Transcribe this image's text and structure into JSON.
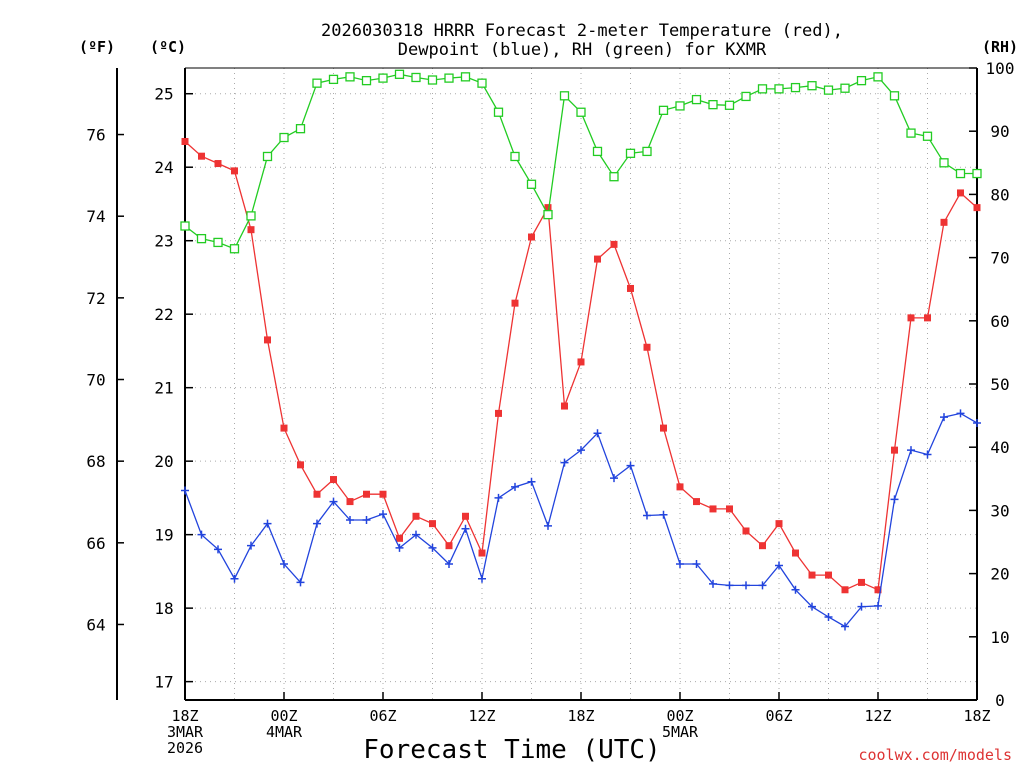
{
  "chart_data": {
    "type": "line",
    "title_line1": "2026030318 HRRR Forecast 2-meter Temperature (red),",
    "title_line2": "Dewpoint (blue), RH (green) for KXMR",
    "xlabel": "Forecast Time (UTC)",
    "unit_f": "(ºF)",
    "unit_c": "(ºC)",
    "unit_rh": "(RH)",
    "credit": "coolwx.com/models",
    "forecast_hours": [
      0,
      1,
      2,
      3,
      4,
      5,
      6,
      7,
      8,
      9,
      10,
      11,
      12,
      13,
      14,
      15,
      16,
      17,
      18,
      19,
      20,
      21,
      22,
      23,
      24,
      25,
      26,
      27,
      28,
      29,
      30,
      31,
      32,
      33,
      34,
      35,
      36,
      37,
      38,
      39,
      40,
      41,
      42,
      43,
      44,
      45,
      46,
      47,
      48
    ],
    "x_ticks": [
      {
        "hour": 0,
        "lines": [
          "18Z",
          "3MAR",
          "2026"
        ]
      },
      {
        "hour": 6,
        "lines": [
          "00Z",
          "4MAR"
        ]
      },
      {
        "hour": 12,
        "lines": [
          "06Z"
        ]
      },
      {
        "hour": 18,
        "lines": [
          "12Z"
        ]
      },
      {
        "hour": 24,
        "lines": [
          "18Z"
        ]
      },
      {
        "hour": 30,
        "lines": [
          "00Z",
          "5MAR"
        ]
      },
      {
        "hour": 36,
        "lines": [
          "06Z"
        ]
      },
      {
        "hour": 42,
        "lines": [
          "12Z"
        ]
      },
      {
        "hour": 48,
        "lines": [
          "18Z"
        ]
      }
    ],
    "c_axis": {
      "min": 16.75,
      "max": 25.35,
      "ticks": [
        17,
        18,
        19,
        20,
        21,
        22,
        23,
        24,
        25
      ]
    },
    "f_ticks": [
      64,
      66,
      68,
      70,
      72,
      74,
      76
    ],
    "rh_axis": {
      "min": 0,
      "max": 100,
      "ticks": [
        0,
        10,
        20,
        30,
        40,
        50,
        60,
        70,
        80,
        90,
        100
      ]
    },
    "series": [
      {
        "name": "Temperature",
        "units": "C",
        "color": "#ee3333",
        "marker": "square",
        "values": [
          24.35,
          24.15,
          24.05,
          23.95,
          23.15,
          21.65,
          20.45,
          19.95,
          19.55,
          19.75,
          19.45,
          19.55,
          19.55,
          18.95,
          19.25,
          19.15,
          18.85,
          19.25,
          18.75,
          20.65,
          22.15,
          23.05,
          23.45,
          20.75,
          21.35,
          22.75,
          22.95,
          22.35,
          21.55,
          20.45,
          19.65,
          19.45,
          19.35,
          19.35,
          19.05,
          18.85,
          19.15,
          18.75,
          18.45,
          18.45,
          18.25,
          18.35,
          18.25,
          20.15,
          21.95,
          21.95,
          23.25,
          23.65,
          23.45
        ]
      },
      {
        "name": "Dewpoint",
        "units": "C",
        "color": "#2244dd",
        "marker": "plus",
        "values": [
          19.6,
          19.0,
          18.8,
          18.4,
          18.85,
          19.15,
          18.6,
          18.35,
          19.15,
          19.45,
          19.2,
          19.2,
          19.28,
          18.82,
          19.0,
          18.82,
          18.6,
          19.08,
          18.4,
          19.5,
          19.65,
          19.72,
          19.12,
          19.98,
          20.15,
          20.38,
          19.77,
          19.94,
          19.26,
          19.27,
          18.6,
          18.6,
          18.33,
          18.31,
          18.31,
          18.31,
          18.58,
          18.25,
          18.02,
          17.88,
          17.75,
          18.02,
          18.03,
          19.48,
          20.15,
          20.09,
          20.6,
          20.65,
          20.52
        ]
      },
      {
        "name": "RH",
        "units": "%",
        "color": "#22cc22",
        "marker": "open-square",
        "values": [
          75.0,
          73.0,
          72.4,
          71.4,
          76.6,
          86.0,
          89.0,
          90.4,
          97.6,
          98.2,
          98.6,
          98.0,
          98.4,
          99.0,
          98.5,
          98.1,
          98.4,
          98.6,
          97.6,
          93.0,
          86.0,
          81.6,
          76.8,
          95.6,
          93.0,
          86.8,
          82.8,
          86.5,
          86.8,
          93.3,
          94.0,
          95.0,
          94.2,
          94.1,
          95.5,
          96.7,
          96.7,
          96.9,
          97.2,
          96.5,
          96.8,
          98.0,
          98.6,
          95.6,
          89.7,
          89.2,
          85.0,
          83.3,
          83.3
        ]
      }
    ]
  }
}
